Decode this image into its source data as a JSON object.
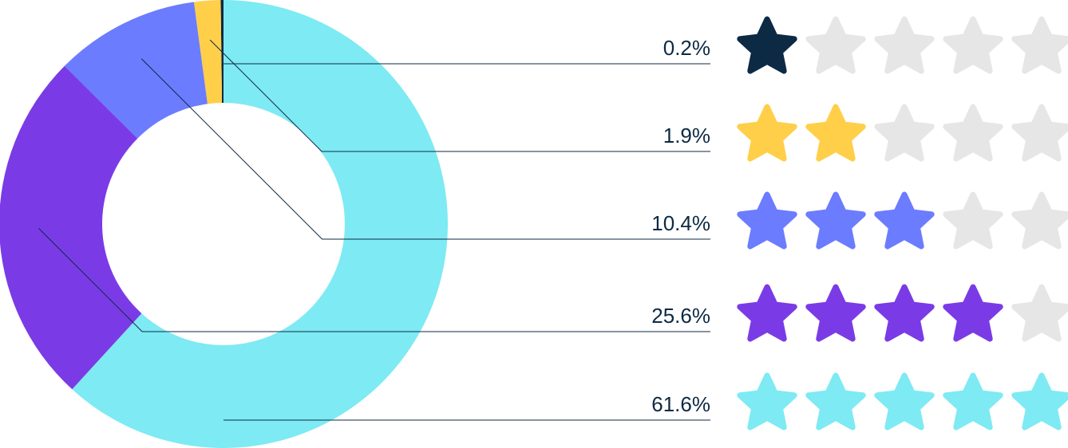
{
  "chart_data": {
    "type": "pie",
    "style": "donut",
    "title": "",
    "slices": [
      {
        "stars": 1,
        "value": 0.2,
        "label": "0.2%",
        "color": "#0d2a44"
      },
      {
        "stars": 2,
        "value": 1.9,
        "label": "1.9%",
        "color": "#ffcf4a"
      },
      {
        "stars": 3,
        "value": 10.4,
        "label": "10.4%",
        "color": "#6b7cff"
      },
      {
        "stars": 4,
        "value": 25.6,
        "label": "25.6%",
        "color": "#7a3be6"
      },
      {
        "stars": 5,
        "value": 61.6,
        "label": "61.6%",
        "color": "#7eeaf3"
      }
    ],
    "rating_scale_max": 5,
    "empty_star_color": "#e6e6e6",
    "legend": "right"
  }
}
